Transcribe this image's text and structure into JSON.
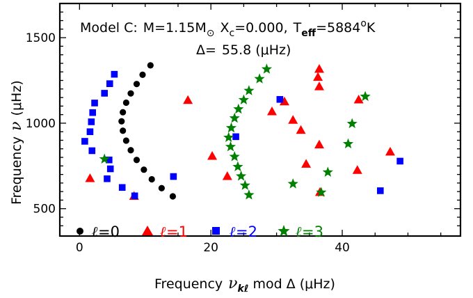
{
  "chart_data": {
    "type": "scatter",
    "title": {
      "model": "Model C:",
      "mass_prefix": "M=1.15M",
      "mass_sub": "⊙",
      "xc_prefix": "X",
      "xc_sub": "c",
      "xc_value": "=0.000,",
      "teff_prefix": "T",
      "teff_sub": "eff",
      "teff_value": "=5884",
      "teff_unit_sup": "o",
      "teff_unit": "K",
      "delta_label": "Δ=",
      "delta_value": "55.8",
      "delta_unit": "(μHz)"
    },
    "xlabel": {
      "prefix": "Frequency",
      "symbol": "ν",
      "sub": "kℓ",
      "suffix": "mod Δ (μHz)"
    },
    "ylabel": {
      "prefix": "Frequency",
      "symbol": "ν",
      "suffix": "(μHz)"
    },
    "xlim": [
      -3,
      58
    ],
    "ylim": [
      340,
      1700
    ],
    "xticks": [
      0,
      20,
      40
    ],
    "yticks": [
      500,
      1000,
      1500
    ],
    "tick_labels_x": [
      "0",
      "20",
      "40"
    ],
    "tick_labels_y": [
      "500",
      "1000",
      "1500"
    ],
    "legend_placement": "bottom",
    "series": [
      {
        "name": "ℓ=0",
        "legend_symbol": "ℓ",
        "legend_value": "=0",
        "marker": "circle",
        "color": "#000000",
        "points": [
          [
            14.2,
            572
          ],
          [
            12.5,
            620
          ],
          [
            11,
            672
          ],
          [
            9.8,
            728
          ],
          [
            8.7,
            785
          ],
          [
            7.8,
            842
          ],
          [
            7.1,
            898
          ],
          [
            6.6,
            956
          ],
          [
            6.4,
            1011
          ],
          [
            6.6,
            1064
          ],
          [
            7.1,
            1120
          ],
          [
            7.8,
            1174
          ],
          [
            8.7,
            1229
          ],
          [
            9.6,
            1283
          ],
          [
            10.8,
            1338
          ]
        ]
      },
      {
        "name": "ℓ=1",
        "legend_symbol": "ℓ",
        "legend_value": "=1",
        "marker": "triangle",
        "color": "#ff0000",
        "points": [
          [
            8.3,
            572
          ],
          [
            1.6,
            676
          ],
          [
            16.5,
            1133
          ],
          [
            20.2,
            806
          ],
          [
            22.5,
            688
          ],
          [
            29.3,
            1067
          ],
          [
            31.2,
            1125
          ],
          [
            32.5,
            1017
          ],
          [
            33.7,
            958
          ],
          [
            34.5,
            760
          ],
          [
            36.3,
            1268
          ],
          [
            36.5,
            1315
          ],
          [
            36.5,
            1213
          ],
          [
            36.5,
            873
          ],
          [
            36.6,
            595
          ],
          [
            42.5,
            1136
          ],
          [
            42.3,
            724
          ],
          [
            47.3,
            831
          ]
        ]
      },
      {
        "name": "ℓ=2",
        "legend_symbol": "ℓ",
        "legend_value": "=2",
        "marker": "square",
        "color": "#0000ff",
        "points": [
          [
            5.3,
            1286
          ],
          [
            4.6,
            1231
          ],
          [
            3.8,
            1175
          ],
          [
            2.3,
            1118
          ],
          [
            2.0,
            1062
          ],
          [
            1.8,
            1008
          ],
          [
            1.6,
            950
          ],
          [
            0.8,
            894
          ],
          [
            1.9,
            839
          ],
          [
            4.5,
            785
          ],
          [
            4.7,
            733
          ],
          [
            4.2,
            675
          ],
          [
            6.5,
            624
          ],
          [
            8.4,
            575
          ],
          [
            14.3,
            688
          ],
          [
            23.8,
            921
          ],
          [
            30.5,
            1139
          ],
          [
            45.8,
            605
          ],
          [
            48.8,
            778
          ]
        ]
      },
      {
        "name": "ℓ=3",
        "legend_symbol": "ℓ",
        "legend_value": "=3",
        "marker": "star",
        "color": "#008000",
        "points": [
          [
            3.8,
            790
          ],
          [
            25.8,
            580
          ],
          [
            25.2,
            636
          ],
          [
            24.6,
            690
          ],
          [
            24.1,
            745
          ],
          [
            23.6,
            804
          ],
          [
            23.0,
            862
          ],
          [
            22.7,
            916
          ],
          [
            23.1,
            972
          ],
          [
            23.6,
            1029
          ],
          [
            24.2,
            1082
          ],
          [
            25.0,
            1136
          ],
          [
            25.8,
            1190
          ],
          [
            27.4,
            1259
          ],
          [
            28.5,
            1316
          ],
          [
            32.5,
            645
          ],
          [
            36.8,
            595
          ],
          [
            37.8,
            713
          ],
          [
            40.9,
            879
          ],
          [
            41.5,
            997
          ],
          [
            43.5,
            1156
          ]
        ]
      }
    ]
  }
}
